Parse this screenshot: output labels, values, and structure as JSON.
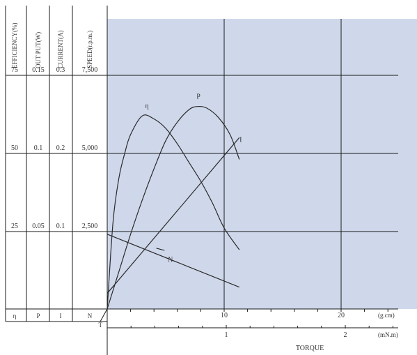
{
  "chart_data": {
    "type": "line",
    "title": "",
    "columns": [
      {
        "key": "efficiency",
        "header": "EFFICIENCY(%)",
        "symbol": "η",
        "ticks": [
          "75",
          "50",
          "25"
        ]
      },
      {
        "key": "output",
        "header": "OUT PUT(W)",
        "symbol": "P",
        "ticks": [
          "0.15",
          "0.1",
          "0.05"
        ]
      },
      {
        "key": "current",
        "header": "CURRENT(A)",
        "symbol": "I",
        "ticks": [
          "0.3",
          "0.2",
          "0.1"
        ]
      },
      {
        "key": "speed",
        "header": "SPEED(r.p.m.)",
        "symbol": "N",
        "ticks": [
          "7,500",
          "5,000",
          "2,500"
        ]
      }
    ],
    "corner_label": "T",
    "x_axes": [
      {
        "unit": "(g.cm)",
        "ticks": [
          {
            "value": 10,
            "label": "10"
          },
          {
            "value": 20,
            "label": "20"
          }
        ],
        "range": [
          0,
          25
        ]
      },
      {
        "unit": "(mN.m)",
        "ticks": [
          {
            "value": 1,
            "label": "1"
          },
          {
            "value": 2,
            "label": "2"
          }
        ],
        "range": [
          0,
          2.45
        ]
      }
    ],
    "xlabel": "TORQUE",
    "xlim": [
      0,
      25
    ],
    "ylim": [
      0,
      100
    ],
    "y_ticks_percent": [
      25,
      50,
      75
    ],
    "grid": true,
    "background_color": "#cfd8ea",
    "line_color": "#2a2a2a",
    "series": [
      {
        "name": "η",
        "x": [
          0,
          0.5,
          1,
          1.5,
          2,
          3,
          4,
          5,
          6,
          7,
          8,
          9,
          10,
          11.3
        ],
        "y": [
          0,
          28,
          42,
          50,
          56,
          62,
          61,
          58,
          53,
          47,
          41,
          34,
          26,
          19
        ]
      },
      {
        "name": "P",
        "x": [
          0,
          1,
          2,
          3,
          4,
          5,
          6,
          7,
          7.7,
          8.5,
          9.5,
          10.5,
          11.3
        ],
        "y": [
          0,
          12,
          24,
          35,
          45,
          54,
          60,
          64,
          65,
          64.5,
          61.5,
          56,
          48
        ]
      },
      {
        "name": "I",
        "x": [
          0,
          11.3
        ],
        "y": [
          5,
          55
        ]
      },
      {
        "name": "N",
        "x": [
          0,
          11.3
        ],
        "y": [
          24,
          7
        ]
      }
    ]
  }
}
